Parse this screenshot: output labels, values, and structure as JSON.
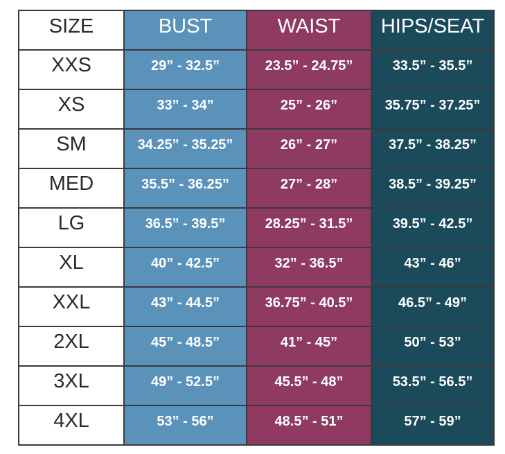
{
  "colors": {
    "size_column_bg": "#ffffff",
    "size_column_text": "#2b2b2b",
    "bust_column_bg": "#5b92ba",
    "waist_column_bg": "#8e3a61",
    "hips_column_bg": "#1b4a5b",
    "value_text": "#ffffff",
    "grid_border": "#3a3a3a",
    "page_bg": "#ffffff"
  },
  "chart_data": {
    "type": "table",
    "columns": [
      "SIZE",
      "BUST",
      "WAIST",
      "HIPS/SEAT"
    ],
    "rows": [
      {
        "size": "XXS",
        "bust": "29” - 32.5”",
        "waist": "23.5” - 24.75”",
        "hips_seat": "33.5” - 35.5”"
      },
      {
        "size": "XS",
        "bust": "33” - 34”",
        "waist": "25” - 26”",
        "hips_seat": "35.75” - 37.25”"
      },
      {
        "size": "SM",
        "bust": "34.25” - 35.25”",
        "waist": "26” - 27”",
        "hips_seat": "37.5” - 38.25”"
      },
      {
        "size": "MED",
        "bust": "35.5” - 36.25”",
        "waist": "27” - 28”",
        "hips_seat": "38.5” - 39.25”"
      },
      {
        "size": "LG",
        "bust": "36.5” - 39.5”",
        "waist": "28.25” - 31.5”",
        "hips_seat": "39.5” - 42.5”"
      },
      {
        "size": "XL",
        "bust": "40” - 42.5”",
        "waist": "32” - 36.5”",
        "hips_seat": "43” - 46”"
      },
      {
        "size": "XXL",
        "bust": "43” - 44.5”",
        "waist": "36.75” - 40.5”",
        "hips_seat": "46.5” - 49”"
      },
      {
        "size": "2XL",
        "bust": "45” - 48.5”",
        "waist": "41” - 45”",
        "hips_seat": "50” - 53”"
      },
      {
        "size": "3XL",
        "bust": "49” - 52.5”",
        "waist": "45.5” - 48”",
        "hips_seat": "53.5” - 56.5”"
      },
      {
        "size": "4XL",
        "bust": "53” - 56”",
        "waist": "48.5” - 51”",
        "hips_seat": "57” - 59”"
      }
    ]
  }
}
